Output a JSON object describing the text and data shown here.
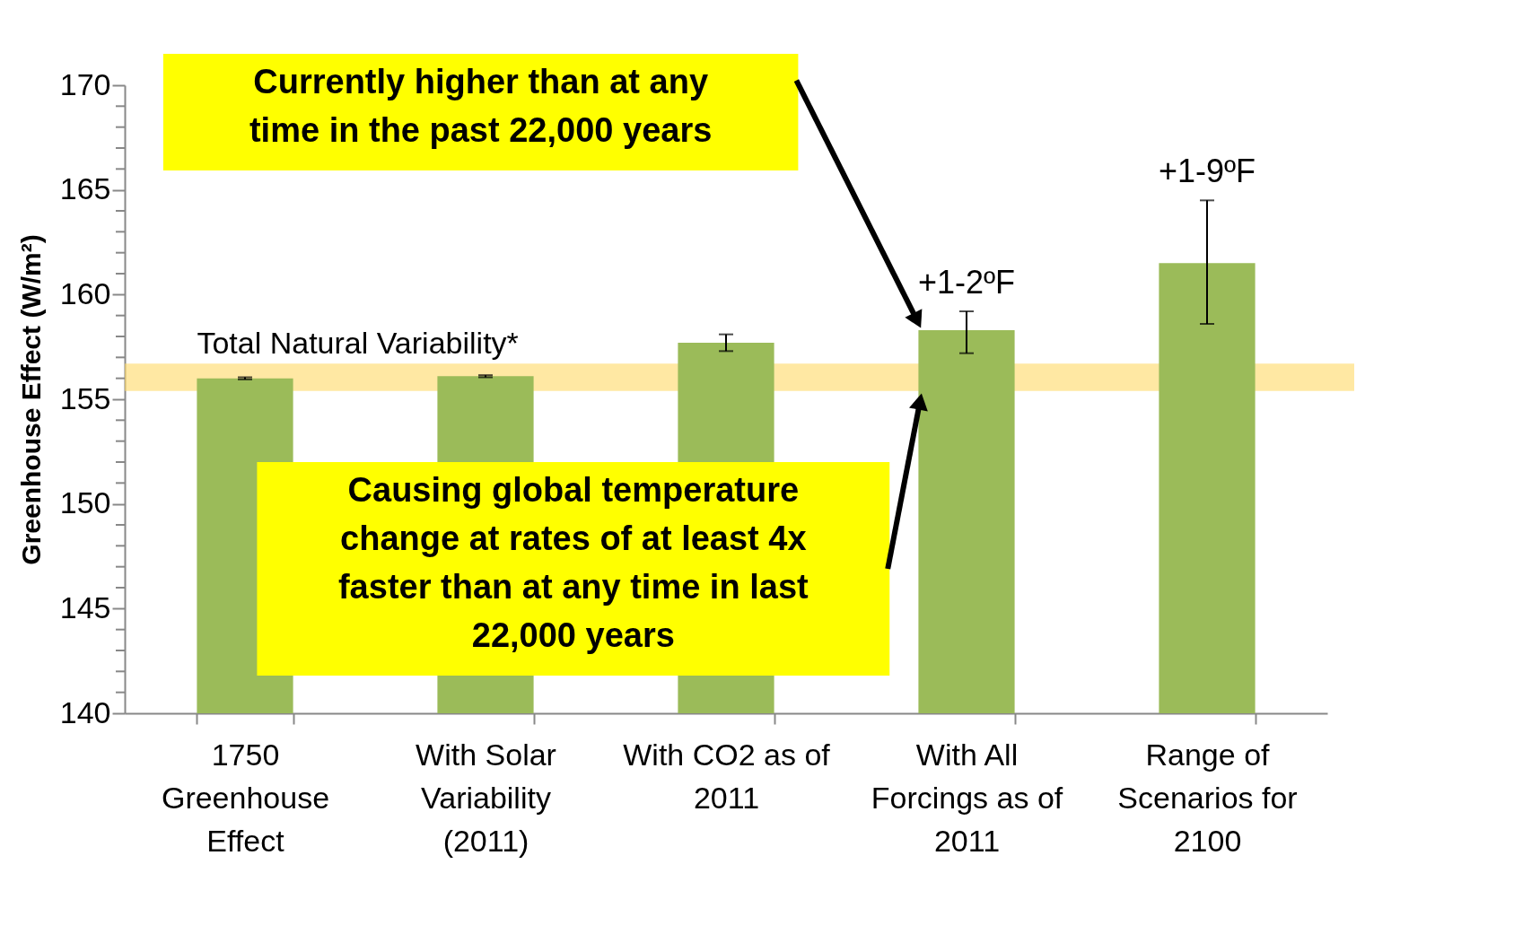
{
  "chart_data": {
    "type": "bar",
    "ylabel": "Greenhouse Effect (W/m²)",
    "categories": [
      "1750 Greenhouse Effect",
      "With Solar Variability (2011)",
      "With CO2 as of 2011",
      "With All Forcings as of 2011",
      "Range of Scenarios for 2100"
    ],
    "values": [
      156.0,
      156.1,
      157.7,
      158.3,
      161.5
    ],
    "errors": [
      [
        155.95,
        156.05
      ],
      [
        156.05,
        156.15
      ],
      [
        157.3,
        158.1
      ],
      [
        157.2,
        159.2
      ],
      [
        158.6,
        164.5
      ]
    ],
    "color": "#9bbb59",
    "ylim": [
      140,
      170
    ],
    "yticks": [
      140,
      {
        "value": 141,
        "label": null
      },
      {
        "value": 142,
        "label": null
      },
      {
        "value": 143,
        "label": null
      },
      {
        "value": 144,
        "label": null
      },
      145,
      {
        "value": 146,
        "label": null
      },
      {
        "value": 147,
        "label": null
      },
      {
        "value": 148,
        "label": null
      },
      {
        "value": 149,
        "label": null
      },
      150,
      {
        "value": 151,
        "label": null
      },
      {
        "value": 152,
        "label": null
      },
      {
        "value": 153,
        "label": null
      },
      {
        "value": 154,
        "label": null
      },
      155,
      {
        "value": 156,
        "label": null
      },
      {
        "value": 157,
        "label": null
      },
      {
        "value": 158,
        "label": null
      },
      {
        "value": 159,
        "label": null
      },
      160,
      {
        "value": 161,
        "label": null
      },
      {
        "value": 162,
        "label": null
      },
      {
        "value": 163,
        "label": null
      },
      {
        "value": 164,
        "label": null
      },
      165,
      {
        "value": 166,
        "label": null
      },
      {
        "value": 167,
        "label": null
      },
      {
        "value": 168,
        "label": null
      },
      {
        "value": 169,
        "label": null
      },
      170
    ],
    "grid": false,
    "bands": [
      {
        "axis": "y",
        "from": 155.4,
        "to": 156.7,
        "label": "Total Natural Variability*",
        "color": "#ffd966"
      }
    ],
    "annotations": [
      {
        "text": "+1-2ºF",
        "x": "With All Forcings as of 2011",
        "y": 159.2
      },
      {
        "text": "+1-9ºF",
        "x": "Range of Scenarios for 2100",
        "y": 164.5
      },
      "Currently higher than at any time in the past 22,000 years",
      "Causing global temperature change at rates of at least 4x faster than at any time in last 22,000 years"
    ]
  }
}
